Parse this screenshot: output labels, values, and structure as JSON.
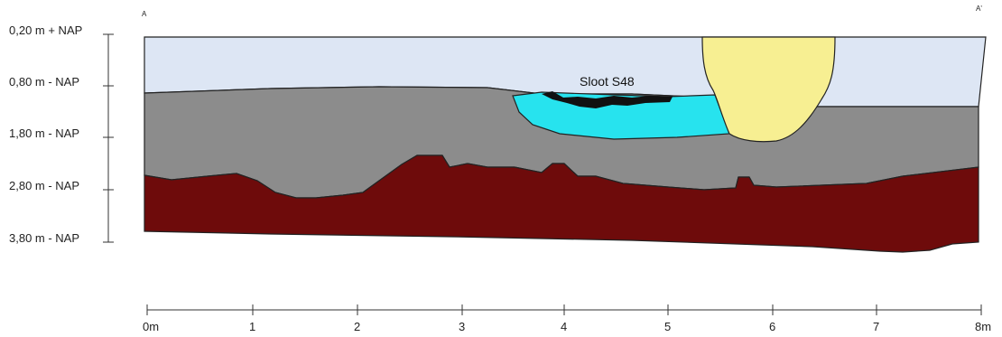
{
  "section": {
    "start_label": "A",
    "end_label": "A'",
    "depth_labels": [
      "0,20 m + NAP",
      "0,80 m - NAP",
      "1,80 m - NAP",
      "2,80 m - NAP",
      "3,80 m - NAP"
    ],
    "feature_label": "Sloot S48",
    "scale_labels": [
      "0m",
      "1",
      "2",
      "3",
      "4",
      "5",
      "6",
      "7",
      "8m"
    ]
  },
  "colors": {
    "topsoil": "#dde6f4",
    "grey_layer": "#8c8c8c",
    "brown_layer": "#6e0b0b",
    "ditch_fill": "#27e3ee",
    "ditch_base": "#111111",
    "pit_fill": "#f7ef92",
    "outline": "#222222"
  }
}
